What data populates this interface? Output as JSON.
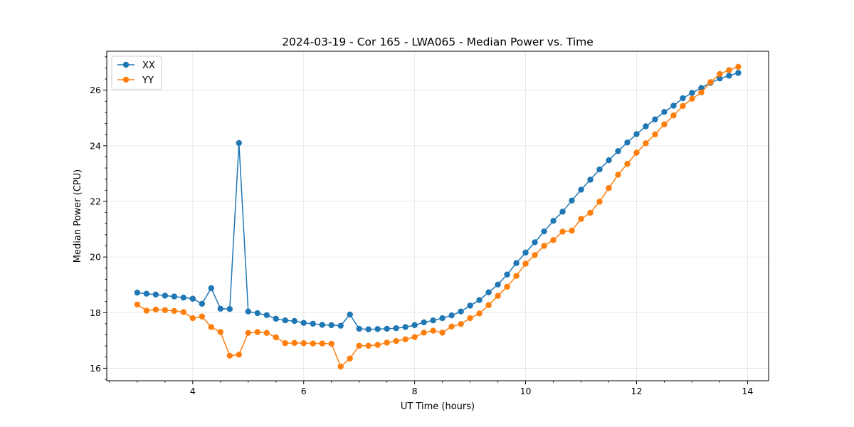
{
  "chart_data": {
    "type": "line",
    "title": "2024-03-19 - Cor 165 - LWA065 - Median Power vs. Time",
    "xlabel": "UT Time (hours)",
    "ylabel": "Median Power (CPU)",
    "xlim": [
      2.45,
      14.38
    ],
    "ylim": [
      15.55,
      27.4
    ],
    "xticks": [
      4,
      6,
      8,
      10,
      12,
      14
    ],
    "yticks": [
      16,
      18,
      20,
      22,
      24,
      26
    ],
    "grid": true,
    "legend_position": "top-left",
    "x": [
      3.0,
      3.1667,
      3.3333,
      3.5,
      3.6667,
      3.8333,
      4.0,
      4.1667,
      4.3333,
      4.5,
      4.6667,
      4.8333,
      5.0,
      5.1667,
      5.3333,
      5.5,
      5.6667,
      5.8333,
      6.0,
      6.1667,
      6.3333,
      6.5,
      6.6667,
      6.8333,
      7.0,
      7.1667,
      7.3333,
      7.5,
      7.6667,
      7.8333,
      8.0,
      8.1667,
      8.3333,
      8.5,
      8.6667,
      8.8333,
      9.0,
      9.1667,
      9.3333,
      9.5,
      9.6667,
      9.8333,
      10.0,
      10.1667,
      10.3333,
      10.5,
      10.6667,
      10.8333,
      11.0,
      11.1667,
      11.3333,
      11.5,
      11.6667,
      11.8333,
      12.0,
      12.1667,
      12.3333,
      12.5,
      12.6667,
      12.8333,
      13.0,
      13.1667,
      13.3333,
      13.5,
      13.6667,
      13.8333
    ],
    "series": [
      {
        "name": "XX",
        "color": "#1f77b4",
        "values": [
          18.72,
          18.68,
          18.65,
          18.61,
          18.58,
          18.54,
          18.5,
          18.32,
          18.88,
          18.14,
          18.13,
          24.1,
          18.04,
          17.98,
          17.91,
          17.78,
          17.72,
          17.7,
          17.63,
          17.6,
          17.56,
          17.55,
          17.53,
          17.93,
          17.42,
          17.4,
          17.41,
          17.42,
          17.44,
          17.48,
          17.55,
          17.65,
          17.72,
          17.8,
          17.9,
          18.04,
          18.25,
          18.45,
          18.73,
          19.01,
          19.37,
          19.78,
          20.16,
          20.53,
          20.92,
          21.3,
          21.63,
          22.03,
          22.42,
          22.78,
          23.15,
          23.48,
          23.81,
          24.12,
          24.42,
          24.7,
          24.95,
          25.22,
          25.44,
          25.71,
          25.9,
          26.08,
          26.26,
          26.42,
          26.52,
          26.62
        ]
      },
      {
        "name": "YY",
        "color": "#ff7f0e",
        "values": [
          18.29,
          18.07,
          18.11,
          18.09,
          18.06,
          18.02,
          17.8,
          17.86,
          17.48,
          17.3,
          16.45,
          16.49,
          17.27,
          17.3,
          17.27,
          17.11,
          16.9,
          16.91,
          16.9,
          16.89,
          16.89,
          16.88,
          16.06,
          16.35,
          16.81,
          16.81,
          16.84,
          16.92,
          16.98,
          17.04,
          17.12,
          17.28,
          17.35,
          17.28,
          17.5,
          17.59,
          17.8,
          17.97,
          18.27,
          18.6,
          18.93,
          19.32,
          19.76,
          20.07,
          20.4,
          20.61,
          20.91,
          20.95,
          21.37,
          21.59,
          21.99,
          22.48,
          22.96,
          23.35,
          23.75,
          24.09,
          24.41,
          24.77,
          25.09,
          25.43,
          25.69,
          25.92,
          26.29,
          26.58,
          26.72,
          26.84
        ]
      }
    ]
  }
}
